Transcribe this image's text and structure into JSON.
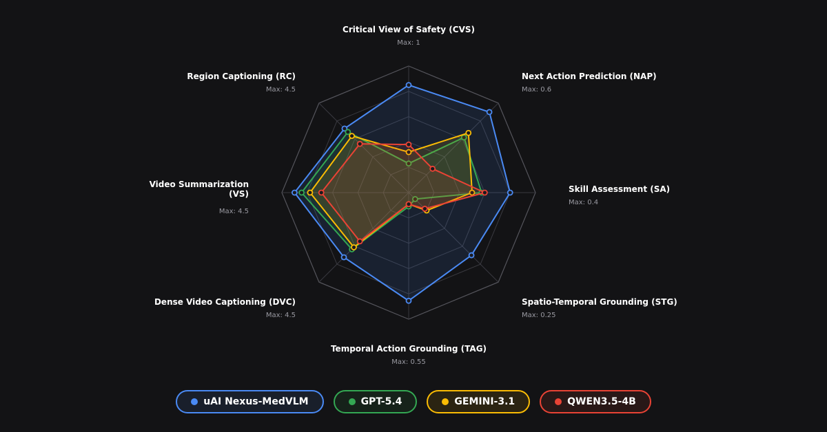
{
  "chart_data": {
    "type": "radar",
    "title": "",
    "axes": [
      {
        "name": "Critical View of Safety (CVS)",
        "max_label": "Max: 1",
        "max": 1
      },
      {
        "name": "Next Action Prediction (NAP)",
        "max_label": "Max: 0.6",
        "max": 0.6
      },
      {
        "name": "Skill Assessment (SA)",
        "max_label": "Max: 0.4",
        "max": 0.4
      },
      {
        "name": "Spatio-Temporal Grounding (STG)",
        "max_label": "Max: 0.25",
        "max": 0.25
      },
      {
        "name": "Temporal Action Grounding (TAG)",
        "max_label": "Max: 0.55",
        "max": 0.55
      },
      {
        "name": "Dense Video Captioning (DVC)",
        "max_label": "Max: 4.5",
        "max": 4.5
      },
      {
        "name": "Video Summarization (VS)",
        "max_label": "Max: 4.5",
        "max": 4.5
      },
      {
        "name": "Region Captioning (RC)",
        "max_label": "Max: 4.5",
        "max": 4.5
      }
    ],
    "grid": true,
    "grid_levels": 5,
    "legend_position": "bottom",
    "series": [
      {
        "name": "uAI Nexus-MedVLM",
        "color": "#4a8af4",
        "values": [
          0.85,
          0.54,
          0.32,
          0.175,
          0.47,
          3.25,
          4.05,
          3.22
        ]
      },
      {
        "name": "GPT-5.4",
        "color": "#34a853",
        "values": [
          0.23,
          0.37,
          0.23,
          0.018,
          0.06,
          2.85,
          3.8,
          3.05
        ]
      },
      {
        "name": "GEMINI-3.1",
        "color": "#fbbc04",
        "values": [
          0.32,
          0.4,
          0.2,
          0.05,
          0.05,
          2.75,
          3.5,
          2.85
        ]
      },
      {
        "name": "QWEN3.5-4B",
        "color": "#ea4335",
        "values": [
          0.38,
          0.16,
          0.24,
          0.045,
          0.05,
          2.45,
          3.1,
          2.45
        ]
      }
    ]
  }
}
